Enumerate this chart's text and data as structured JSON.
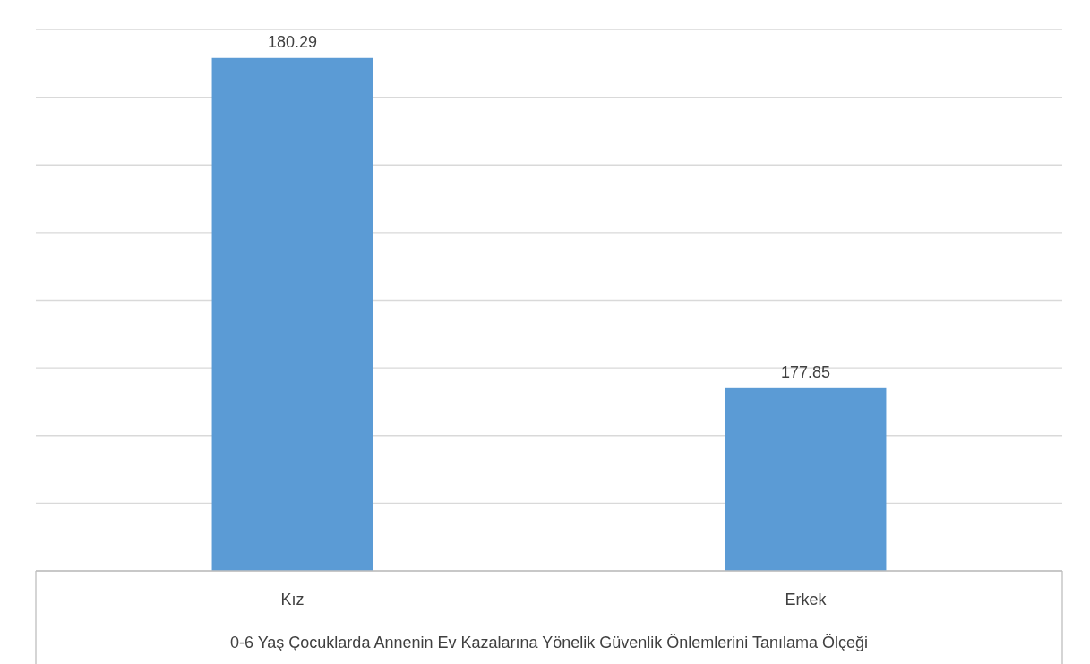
{
  "chart_data": {
    "type": "bar",
    "xlabel": "0-6 Yaş Çocuklarda Annenin Ev Kazalarına  Yönelik Güvenlik Önlemlerini Tanılama Ölçeği",
    "categories": [
      "Kız",
      "Erkek"
    ],
    "values": [
      180.29,
      177.85
    ],
    "color": "#5b9bd5",
    "ylim": [
      176.5,
      180.5
    ],
    "yticks": [
      {
        "value": 176.5,
        "label": null
      },
      {
        "value": 177,
        "label": null
      },
      {
        "value": 177.5,
        "label": null
      },
      {
        "value": 178,
        "label": null
      },
      {
        "value": 178.5,
        "label": null
      },
      {
        "value": 179,
        "label": null
      },
      {
        "value": 179.5,
        "label": null
      },
      {
        "value": 180,
        "label": null
      },
      {
        "value": 180.5,
        "label": null
      }
    ],
    "grid": "y",
    "data_labels": true,
    "tick_labels": "x"
  }
}
